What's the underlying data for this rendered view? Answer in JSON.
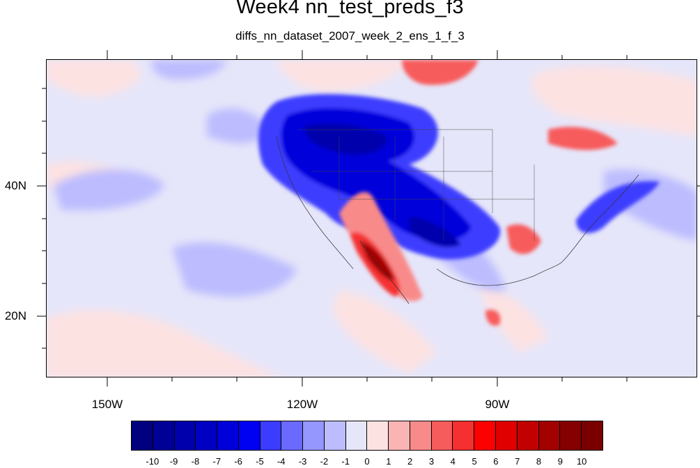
{
  "title": "Week4 nn_test_preds_f3",
  "subtitle": "diffs_nn_dataset_2007_week_2_ens_1_f_3",
  "axes": {
    "lon_labels": [
      "150W",
      "120W",
      "90W"
    ],
    "lat_labels": [
      "40N",
      "20N"
    ]
  },
  "colorbar": {
    "labels": [
      "-10",
      "-9",
      "-8",
      "-7",
      "-6",
      "-5",
      "-4",
      "-3",
      "-2",
      "-1",
      "0",
      "1",
      "2",
      "3",
      "4",
      "5",
      "6",
      "7",
      "8",
      "9",
      "10"
    ],
    "colors": [
      "#00007f",
      "#000096",
      "#0000ad",
      "#0000c4",
      "#0000db",
      "#0000f2",
      "#3c3cff",
      "#6a6aff",
      "#9696ff",
      "#bcbcff",
      "#e6e6fa",
      "#fde2e2",
      "#fbb4b4",
      "#f98a8a",
      "#f75c5c",
      "#f53030",
      "#ff0000",
      "#e00000",
      "#c20000",
      "#a30000",
      "#850000",
      "#7a0000"
    ]
  },
  "chart_data": {
    "type": "heatmap",
    "title": "Week4 nn_test_preds_f3",
    "subtitle": "diffs_nn_dataset_2007_week_2_ens_1_f_3",
    "x_ticks": [
      "150W",
      "120W",
      "90W"
    ],
    "y_ticks": [
      "40N",
      "20N"
    ],
    "lon_range": [
      -160,
      -61
    ],
    "lat_range": [
      11,
      60
    ],
    "color_levels": [
      -10,
      -9,
      -8,
      -7,
      -6,
      -5,
      -4,
      -3,
      -2,
      -1,
      0,
      1,
      2,
      3,
      4,
      5,
      6,
      7,
      8,
      9,
      10
    ]
  }
}
